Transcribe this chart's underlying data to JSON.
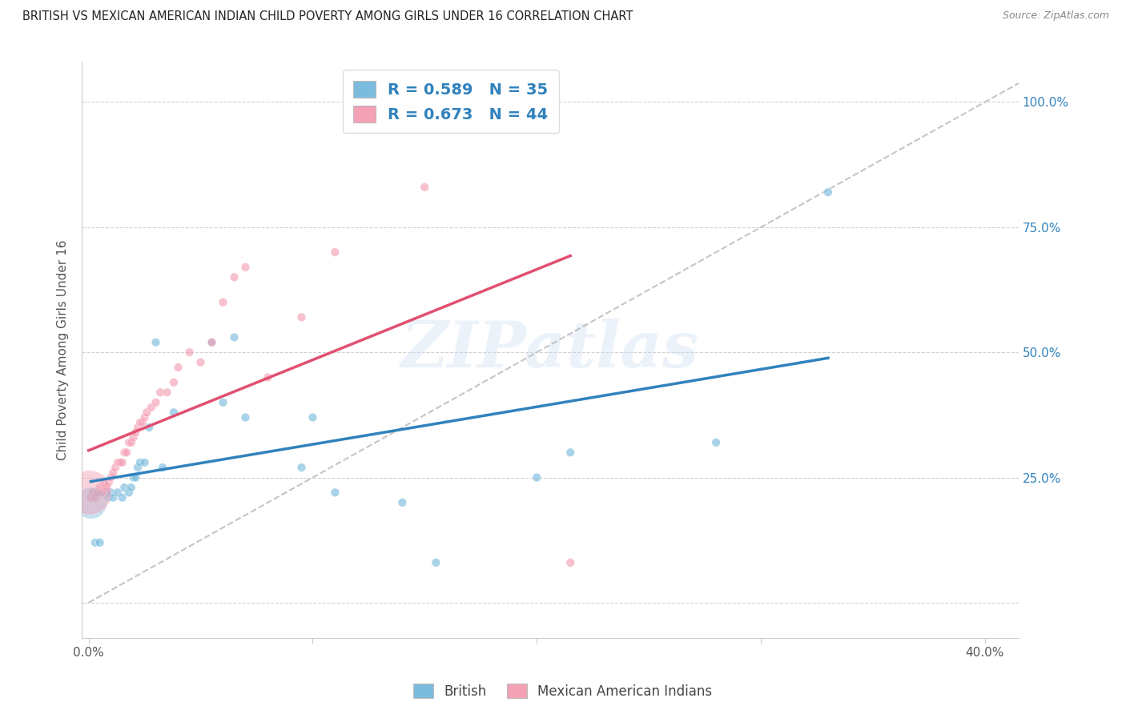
{
  "title": "BRITISH VS MEXICAN AMERICAN INDIAN CHILD POVERTY AMONG GIRLS UNDER 16 CORRELATION CHART",
  "source": "Source: ZipAtlas.com",
  "ylabel": "Child Poverty Among Girls Under 16",
  "xlim": [
    -0.003,
    0.415
  ],
  "ylim": [
    -0.07,
    1.08
  ],
  "xtick_positions": [
    0.0,
    0.1,
    0.2,
    0.3,
    0.4
  ],
  "xtick_labels": [
    "0.0%",
    "",
    "",
    "",
    "40.0%"
  ],
  "ytick_positions": [
    0.0,
    0.25,
    0.5,
    0.75,
    1.0
  ],
  "ytick_labels_right": [
    "",
    "25.0%",
    "50.0%",
    "75.0%",
    "100.0%"
  ],
  "british_r": 0.589,
  "british_n": 35,
  "mexican_r": 0.673,
  "mexican_n": 44,
  "british_color": "#7bbcde",
  "mexican_color": "#f4a0b5",
  "british_line_color": "#3182bd",
  "mexican_line_color": "#e05070",
  "diag_line_color": "#bbbbbb",
  "watermark": "ZIPatlas",
  "british_x": [
    0.001,
    0.003,
    0.005,
    0.007,
    0.008,
    0.009,
    0.01,
    0.011,
    0.013,
    0.015,
    0.016,
    0.018,
    0.019,
    0.02,
    0.021,
    0.022,
    0.023,
    0.025,
    0.027,
    0.03,
    0.033,
    0.038,
    0.055,
    0.06,
    0.065,
    0.07,
    0.095,
    0.1,
    0.11,
    0.14,
    0.155,
    0.2,
    0.215,
    0.28,
    0.33
  ],
  "british_y": [
    0.2,
    0.12,
    0.12,
    0.22,
    0.22,
    0.21,
    0.22,
    0.21,
    0.22,
    0.21,
    0.23,
    0.22,
    0.23,
    0.25,
    0.25,
    0.27,
    0.28,
    0.28,
    0.35,
    0.52,
    0.27,
    0.38,
    0.52,
    0.4,
    0.53,
    0.37,
    0.27,
    0.37,
    0.22,
    0.2,
    0.08,
    0.25,
    0.3,
    0.32,
    0.82
  ],
  "british_sizes": [
    800,
    60,
    60,
    60,
    60,
    60,
    60,
    60,
    60,
    60,
    60,
    60,
    60,
    60,
    60,
    60,
    60,
    60,
    60,
    60,
    60,
    60,
    60,
    60,
    60,
    60,
    60,
    60,
    60,
    60,
    60,
    60,
    60,
    60,
    60
  ],
  "mexican_x": [
    0.0,
    0.001,
    0.002,
    0.003,
    0.004,
    0.005,
    0.006,
    0.007,
    0.008,
    0.009,
    0.01,
    0.011,
    0.012,
    0.013,
    0.014,
    0.015,
    0.016,
    0.017,
    0.018,
    0.019,
    0.02,
    0.021,
    0.022,
    0.023,
    0.024,
    0.025,
    0.026,
    0.028,
    0.03,
    0.032,
    0.035,
    0.038,
    0.04,
    0.045,
    0.05,
    0.055,
    0.06,
    0.065,
    0.07,
    0.08,
    0.095,
    0.11,
    0.15,
    0.215
  ],
  "mexican_y": [
    0.22,
    0.21,
    0.22,
    0.21,
    0.22,
    0.23,
    0.22,
    0.24,
    0.23,
    0.24,
    0.25,
    0.26,
    0.27,
    0.28,
    0.28,
    0.28,
    0.3,
    0.3,
    0.32,
    0.32,
    0.33,
    0.34,
    0.35,
    0.36,
    0.36,
    0.37,
    0.38,
    0.39,
    0.4,
    0.42,
    0.42,
    0.44,
    0.47,
    0.5,
    0.48,
    0.52,
    0.6,
    0.65,
    0.67,
    0.45,
    0.57,
    0.7,
    0.83,
    0.08
  ],
  "mexican_sizes": [
    1600,
    60,
    60,
    60,
    60,
    60,
    60,
    60,
    60,
    60,
    60,
    60,
    60,
    60,
    60,
    60,
    60,
    60,
    60,
    60,
    60,
    60,
    60,
    60,
    60,
    60,
    60,
    60,
    60,
    60,
    60,
    60,
    60,
    60,
    60,
    60,
    60,
    60,
    60,
    60,
    60,
    60,
    60,
    60
  ]
}
